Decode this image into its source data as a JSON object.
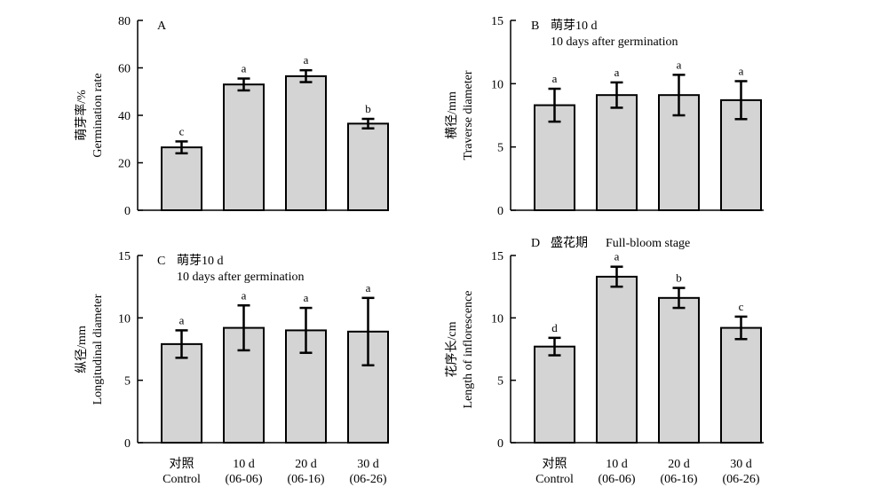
{
  "colors": {
    "bar_fill": "#d4d4d4",
    "bar_stroke": "#000000",
    "axis": "#000000"
  },
  "chart_data": [
    {
      "type": "bar",
      "panel": "A",
      "title": "",
      "subtitle": "",
      "ylabel_cn": "萌芽率/%",
      "ylabel": "Germination rate",
      "ylim": [
        0,
        80
      ],
      "yticks": [
        0,
        20,
        40,
        60,
        80
      ],
      "show_categories": false,
      "categories": [
        "Control",
        "10 d",
        "20 d",
        "30 d"
      ],
      "values": [
        26.5,
        53,
        56.5,
        36.5
      ],
      "errors": [
        2.5,
        2.5,
        2.5,
        2.0
      ],
      "significance": [
        "c",
        "a",
        "a",
        "b"
      ]
    },
    {
      "type": "bar",
      "panel": "B",
      "title": "萌芽10 d",
      "subtitle": "10 days after germination",
      "ylabel_cn": "横径/mm",
      "ylabel": "Traverse diameter",
      "ylim": [
        0,
        15
      ],
      "yticks": [
        0,
        5,
        10,
        15
      ],
      "show_categories": false,
      "categories": [
        "Control",
        "10 d",
        "20 d",
        "30 d"
      ],
      "values": [
        8.3,
        9.1,
        9.1,
        8.7
      ],
      "errors": [
        1.3,
        1.0,
        1.6,
        1.5
      ],
      "significance": [
        "a",
        "a",
        "a",
        "a"
      ]
    },
    {
      "type": "bar",
      "panel": "C",
      "title": "萌芽10 d",
      "subtitle": "10 days after germination",
      "ylabel_cn": "纵径/mm",
      "ylabel": "Longitudinal diameter",
      "ylim": [
        0,
        15
      ],
      "yticks": [
        0,
        5,
        10,
        15
      ],
      "show_categories": true,
      "categories": [
        "Control",
        "10 d",
        "20 d",
        "30 d"
      ],
      "values": [
        7.9,
        9.2,
        9.0,
        8.9
      ],
      "errors": [
        1.1,
        1.8,
        1.8,
        2.7
      ],
      "significance": [
        "a",
        "a",
        "a",
        "a"
      ]
    },
    {
      "type": "bar",
      "panel": "D",
      "title": "盛花期",
      "subtitle": "Full-bloom stage",
      "ylabel_cn": "花序长/cm",
      "ylabel": "Length of inflorescence",
      "ylim": [
        0,
        15
      ],
      "yticks": [
        0,
        5,
        10,
        15
      ],
      "show_categories": true,
      "categories": [
        "Control",
        "10 d",
        "20 d",
        "30 d"
      ],
      "values": [
        7.7,
        13.3,
        11.6,
        9.2
      ],
      "errors": [
        0.7,
        0.8,
        0.8,
        0.9
      ],
      "significance": [
        "d",
        "a",
        "b",
        "c"
      ]
    }
  ],
  "x_labels": [
    {
      "line1": "对照",
      "line2": "Control"
    },
    {
      "line1": "10 d",
      "line2": "(06-06)"
    },
    {
      "line1": "20 d",
      "line2": "(06-16)"
    },
    {
      "line1": "30 d",
      "line2": "(06-26)"
    }
  ]
}
